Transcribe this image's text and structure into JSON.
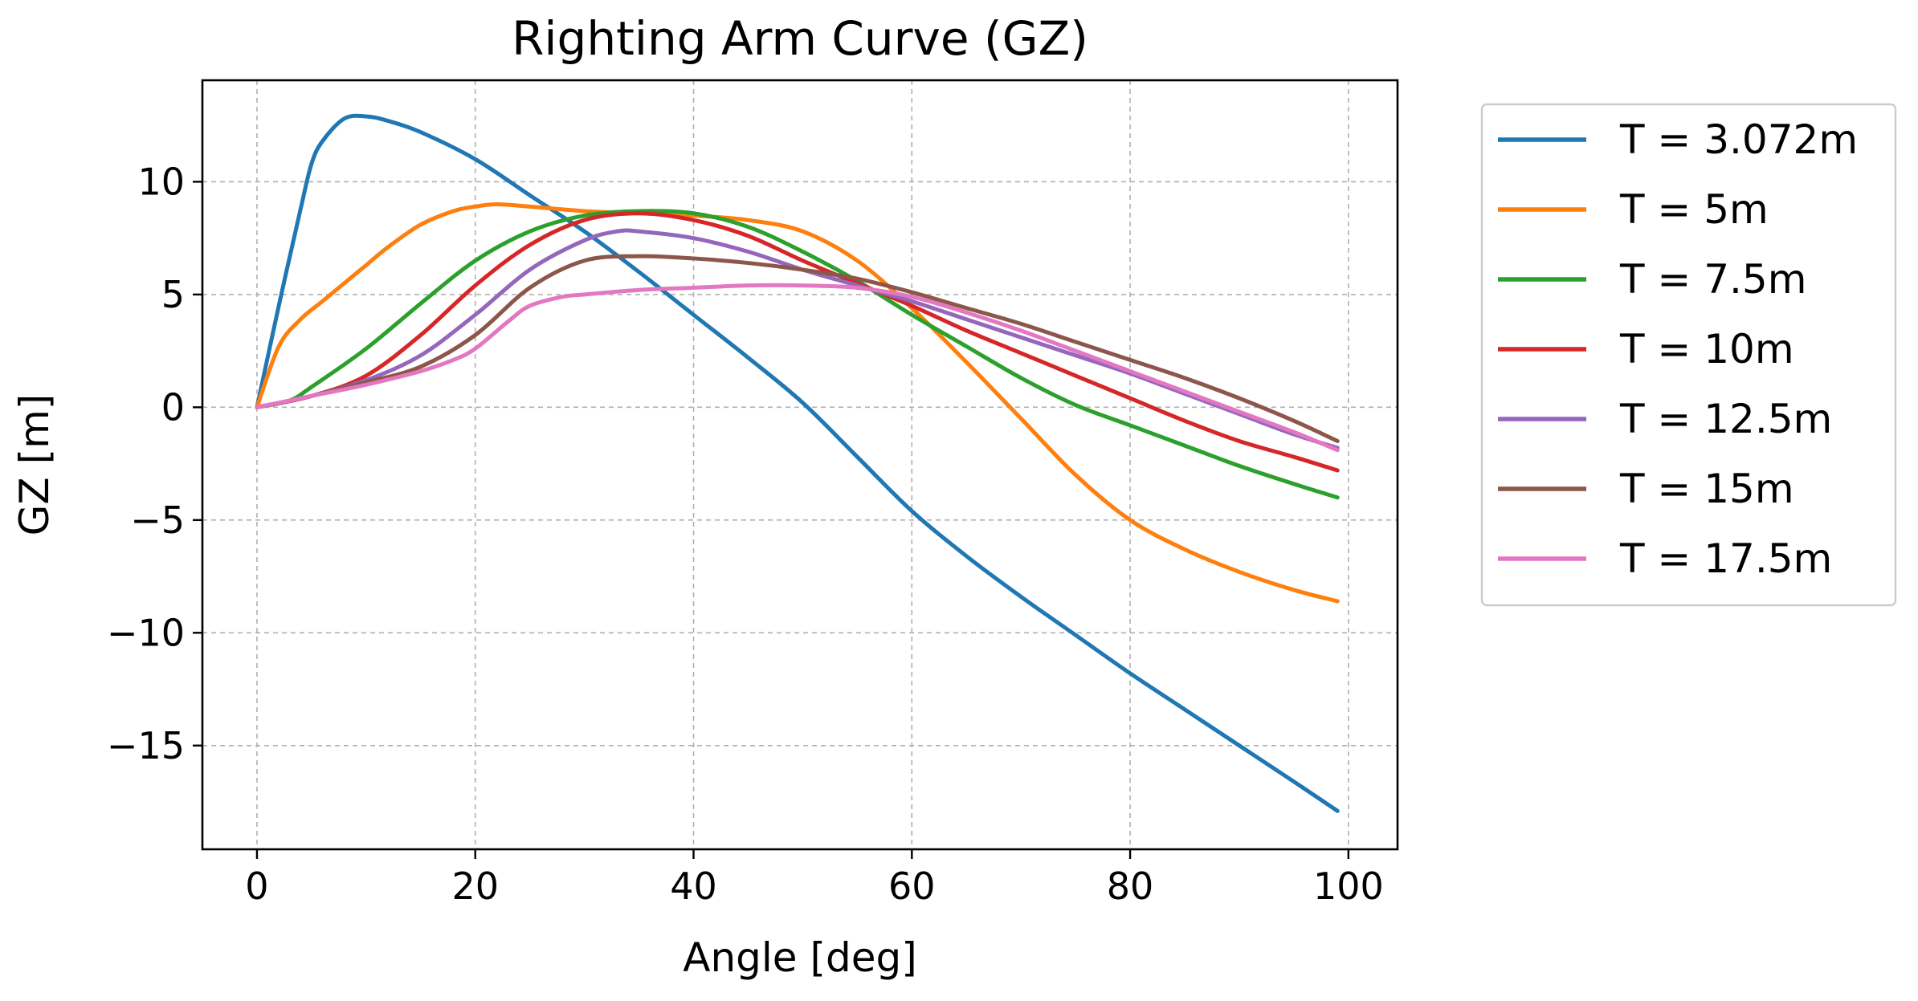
{
  "chart_data": {
    "type": "line",
    "title": "Righting Arm Curve (GZ)",
    "xlabel": "Angle [deg]",
    "ylabel": "GZ [m]",
    "xlim": [
      -5,
      104.5
    ],
    "ylim": [
      -19.6,
      14.5
    ],
    "xticks": [
      0,
      20,
      40,
      60,
      80,
      100
    ],
    "xtick_labels": [
      "0",
      "20",
      "40",
      "60",
      "80",
      "100"
    ],
    "yticks": [
      10,
      5,
      0,
      -5,
      -10,
      -15
    ],
    "ytick_labels": [
      "10",
      "5",
      "0",
      "−5",
      "−10",
      "−15"
    ],
    "grid": true,
    "legend_position": "outside-right",
    "series": [
      {
        "name": "T = 3.072m",
        "color": "#1f77b4",
        "x": [
          0,
          2,
          4,
          5,
          6,
          8,
          10,
          12,
          15,
          20,
          25,
          30,
          35,
          40,
          45,
          50,
          55,
          60,
          65,
          70,
          75,
          80,
          85,
          90,
          95,
          99
        ],
        "y": [
          0,
          4.5,
          8.8,
          10.8,
          11.8,
          12.8,
          12.9,
          12.7,
          12.2,
          11.0,
          9.4,
          7.8,
          6.0,
          4.1,
          2.2,
          0.2,
          -2.2,
          -4.6,
          -6.6,
          -8.4,
          -10.1,
          -11.8,
          -13.4,
          -15.0,
          -16.6,
          -17.9
        ]
      },
      {
        "name": "T = 5m",
        "color": "#ff7f0e",
        "x": [
          0,
          2,
          4,
          6,
          8,
          10,
          12,
          15,
          18,
          20,
          22,
          25,
          30,
          35,
          40,
          45,
          50,
          55,
          60,
          65,
          70,
          75,
          80,
          85,
          90,
          95,
          99
        ],
        "y": [
          0,
          2.7,
          3.9,
          4.7,
          5.5,
          6.3,
          7.1,
          8.1,
          8.7,
          8.9,
          9.0,
          8.9,
          8.7,
          8.6,
          8.5,
          8.3,
          7.8,
          6.5,
          4.4,
          2.0,
          -0.5,
          -3.0,
          -5.0,
          -6.3,
          -7.3,
          -8.1,
          -8.6
        ]
      },
      {
        "name": "T = 7.5m",
        "color": "#2ca02c",
        "x": [
          0,
          3,
          5,
          10,
          15,
          20,
          25,
          30,
          35,
          40,
          45,
          50,
          55,
          60,
          65,
          70,
          75,
          80,
          85,
          90,
          95,
          99
        ],
        "y": [
          0,
          0.3,
          0.9,
          2.6,
          4.6,
          6.5,
          7.8,
          8.5,
          8.7,
          8.6,
          8.0,
          6.9,
          5.6,
          4.1,
          2.7,
          1.3,
          0.1,
          -0.8,
          -1.7,
          -2.6,
          -3.4,
          -4.0
        ]
      },
      {
        "name": "T = 10m",
        "color": "#d62728",
        "x": [
          0,
          5,
          10,
          15,
          20,
          25,
          30,
          35,
          40,
          45,
          50,
          55,
          60,
          65,
          70,
          75,
          80,
          85,
          90,
          95,
          99
        ],
        "y": [
          0,
          0.5,
          1.4,
          3.2,
          5.4,
          7.2,
          8.3,
          8.6,
          8.3,
          7.6,
          6.5,
          5.5,
          4.5,
          3.4,
          2.4,
          1.4,
          0.4,
          -0.6,
          -1.5,
          -2.2,
          -2.8
        ]
      },
      {
        "name": "T = 12.5m",
        "color": "#9467bd",
        "x": [
          0,
          5,
          10,
          15,
          20,
          25,
          30,
          33,
          35,
          40,
          45,
          50,
          55,
          60,
          65,
          70,
          75,
          80,
          85,
          90,
          95,
          99
        ],
        "y": [
          0,
          0.5,
          1.2,
          2.3,
          4.1,
          6.1,
          7.4,
          7.8,
          7.8,
          7.5,
          6.9,
          6.1,
          5.4,
          4.7,
          3.9,
          3.1,
          2.3,
          1.5,
          0.6,
          -0.3,
          -1.2,
          -1.8
        ]
      },
      {
        "name": "T = 15m",
        "color": "#8c564b",
        "x": [
          0,
          5,
          10,
          15,
          20,
          25,
          30,
          35,
          40,
          45,
          50,
          55,
          60,
          65,
          70,
          75,
          80,
          85,
          90,
          95,
          99
        ],
        "y": [
          0,
          0.5,
          1.1,
          1.8,
          3.2,
          5.3,
          6.5,
          6.7,
          6.6,
          6.4,
          6.1,
          5.7,
          5.1,
          4.4,
          3.7,
          2.9,
          2.1,
          1.3,
          0.4,
          -0.6,
          -1.5
        ]
      },
      {
        "name": "T = 17.5m",
        "color": "#e377c2",
        "x": [
          0,
          5,
          10,
          15,
          18,
          20,
          23,
          25,
          28,
          30,
          35,
          40,
          45,
          50,
          55,
          60,
          65,
          70,
          75,
          80,
          85,
          90,
          95,
          99
        ],
        "y": [
          0,
          0.5,
          1.0,
          1.6,
          2.1,
          2.6,
          3.8,
          4.5,
          4.9,
          5.0,
          5.2,
          5.3,
          5.4,
          5.4,
          5.3,
          4.9,
          4.2,
          3.4,
          2.5,
          1.6,
          0.7,
          -0.2,
          -1.1,
          -1.9
        ]
      }
    ]
  }
}
